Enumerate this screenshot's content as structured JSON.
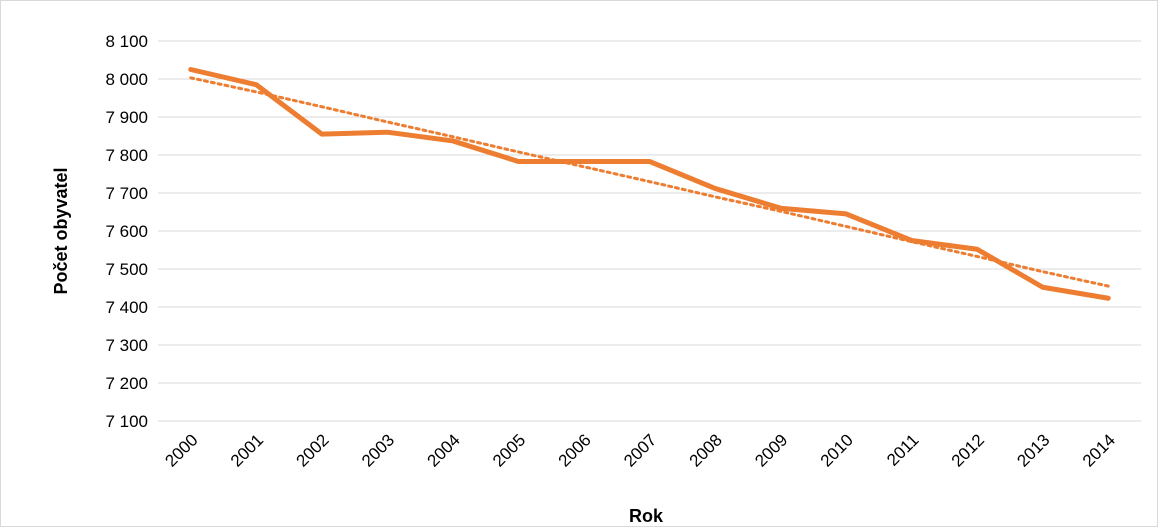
{
  "chart_data": {
    "type": "line",
    "title": "",
    "xlabel": "Rok",
    "ylabel": "Počet obyvatel",
    "ylim": [
      7100,
      8100
    ],
    "y_ticks": [
      "7 100",
      "7 200",
      "7 300",
      "7 400",
      "7 500",
      "7 600",
      "7 700",
      "7 800",
      "7 900",
      "8 000",
      "8 100"
    ],
    "y_tick_values": [
      7100,
      7200,
      7300,
      7400,
      7500,
      7600,
      7700,
      7800,
      7900,
      8000,
      8100
    ],
    "categories": [
      "2000",
      "2001",
      "2002",
      "2003",
      "2004",
      "2005",
      "2006",
      "2007",
      "2008",
      "2009",
      "2010",
      "2011",
      "2012",
      "2013",
      "2014"
    ],
    "series": [
      {
        "values": [
          8025,
          7985,
          7855,
          7860,
          7837,
          7783,
          7783,
          7783,
          7712,
          7660,
          7645,
          7575,
          7552,
          7452,
          7423
        ],
        "color": "#ed7d31"
      }
    ],
    "trendline": {
      "style": "dotted",
      "color": "#ed7d31",
      "values": [
        8003,
        7966,
        7927,
        7887,
        7848,
        7808,
        7769,
        7730,
        7690,
        7652,
        7612,
        7572,
        7533,
        7493,
        7455
      ]
    },
    "grid": true,
    "legend": "none"
  }
}
